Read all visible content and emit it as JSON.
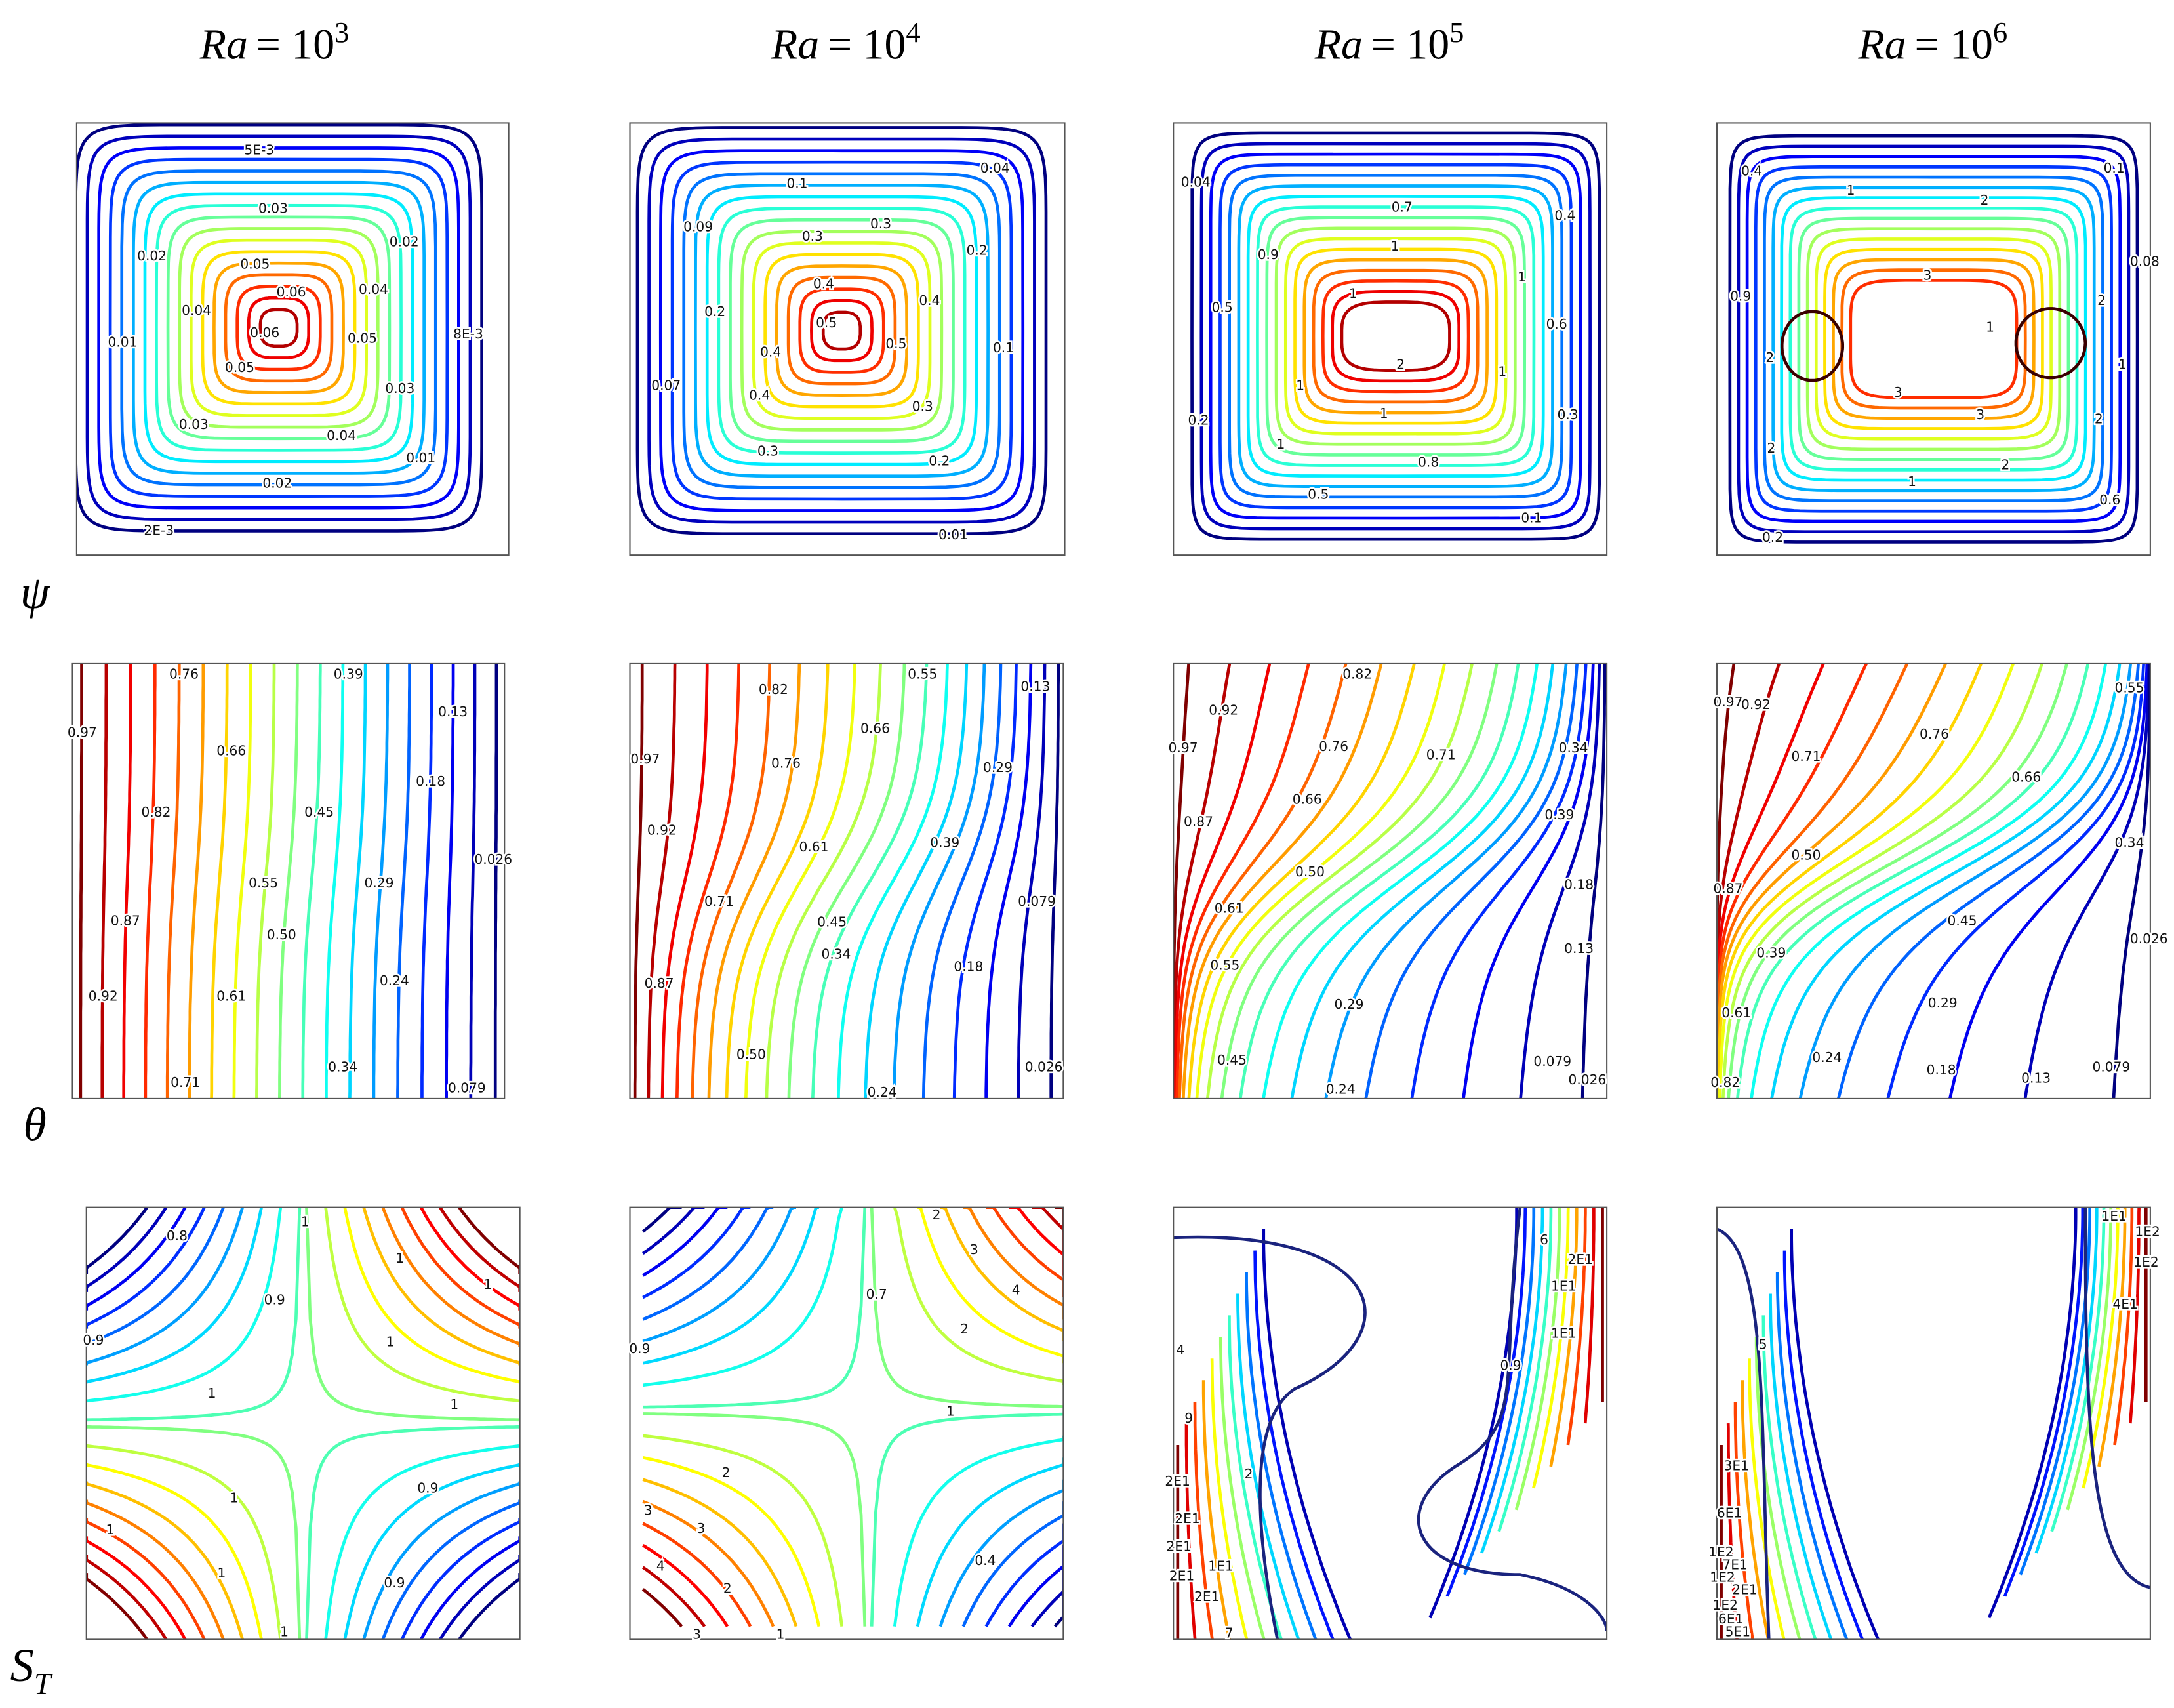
{
  "columns": [
    {
      "variable": "Ra",
      "relation": "= 10",
      "exponent": "3"
    },
    {
      "variable": "Ra",
      "relation": "= 10",
      "exponent": "4"
    },
    {
      "variable": "Ra",
      "relation": "= 10",
      "exponent": "5"
    },
    {
      "variable": "Ra",
      "relation": "= 10",
      "exponent": "6"
    }
  ],
  "rows": [
    {
      "label": "ψ",
      "panels": [
        {
          "contour_labels": [
            "5E-3",
            "0.03",
            "0.02",
            "0.02",
            "0.05",
            "0.06",
            "0.04",
            "0.04",
            "0.01",
            "0.06",
            "0.05",
            "8E-3",
            "0.05",
            "0.03",
            "0.03",
            "0.04",
            "0.01",
            "0.02",
            "2E-3"
          ]
        },
        {
          "contour_labels": [
            "0.04",
            "0.1",
            "0.09",
            "0.3",
            "0.3",
            "0.2",
            "0.4",
            "0.4",
            "0.2",
            "0.5",
            "0.5",
            "0.1",
            "0.4",
            "0.07",
            "0.4",
            "0.3",
            "0.3",
            "0.2",
            "0.01"
          ]
        },
        {
          "contour_labels": [
            "0.04",
            "0.7",
            "0.4",
            "0.9",
            "1",
            "1",
            "1",
            "0.5",
            "0.6",
            "2",
            "1",
            "1",
            "1",
            "0.2",
            "0.3",
            "1",
            "0.8",
            "0.5",
            "0.1"
          ]
        },
        {
          "contour_labels": [
            "0.4",
            "0.1",
            "1",
            "2",
            "0.08",
            "3",
            "0.9",
            "2",
            "1",
            "2",
            "1",
            "3",
            "3",
            "2",
            "2",
            "2",
            "1",
            "0.6",
            "0.2"
          ]
        }
      ]
    },
    {
      "label": "θ",
      "panels": [
        {
          "contour_labels": [
            "0.76",
            "0.39",
            "0.97",
            "0.13",
            "0.66",
            "0.82",
            "0.45",
            "0.18",
            "0.026",
            "0.55",
            "0.29",
            "0.87",
            "0.50",
            "0.24",
            "0.92",
            "0.61",
            "0.34",
            "0.71",
            "0.079"
          ]
        },
        {
          "contour_labels": [
            "0.55",
            "0.82",
            "0.13",
            "0.97",
            "0.66",
            "0.76",
            "0.29",
            "0.92",
            "0.61",
            "0.39",
            "0.71",
            "0.079",
            "0.45",
            "0.18",
            "0.34",
            "0.87",
            "0.50",
            "0.026",
            "0.24"
          ]
        },
        {
          "contour_labels": [
            "0.82",
            "0.92",
            "0.97",
            "0.76",
            "0.71",
            "0.34",
            "0.66",
            "0.39",
            "0.87",
            "0.50",
            "0.18",
            "0.61",
            "0.13",
            "0.55",
            "0.29",
            "0.079",
            "0.45",
            "0.026",
            "0.24"
          ]
        },
        {
          "contour_labels": [
            "0.97",
            "0.92",
            "0.55",
            "0.76",
            "0.71",
            "0.66",
            "0.34",
            "0.50",
            "0.87",
            "0.45",
            "0.026",
            "0.39",
            "0.29",
            "0.61",
            "0.24",
            "0.18",
            "0.13",
            "0.079",
            "0.82"
          ]
        }
      ]
    },
    {
      "label": "S",
      "label_subscript": "T",
      "panels": [
        {
          "contour_labels": [
            "0.8",
            "1",
            "1",
            "1",
            "0.9",
            "0.9",
            "1",
            "1",
            "1",
            "0.9",
            "1",
            "1",
            "1",
            "0.9",
            "1"
          ]
        },
        {
          "contour_labels": [
            "2",
            "3",
            "0.7",
            "4",
            "0.9",
            "2",
            "1",
            "2",
            "3",
            "3",
            "4",
            "0.4",
            "2",
            "3",
            "1"
          ]
        },
        {
          "contour_labels": [
            "6",
            "2E1",
            "1E1",
            "1E1",
            "4",
            "0.9",
            "9",
            "2",
            "2E1",
            "2E1",
            "2E1",
            "1E1",
            "2E1",
            "2E1",
            "7"
          ]
        },
        {
          "contour_labels": [
            "1E1",
            "1E2",
            "1E2",
            "4E1",
            "5",
            "3E1",
            "6E1",
            "1E2",
            "7E1",
            "1E2",
            "2E1",
            "1E2",
            "6E1",
            "5E1"
          ]
        }
      ]
    }
  ]
}
